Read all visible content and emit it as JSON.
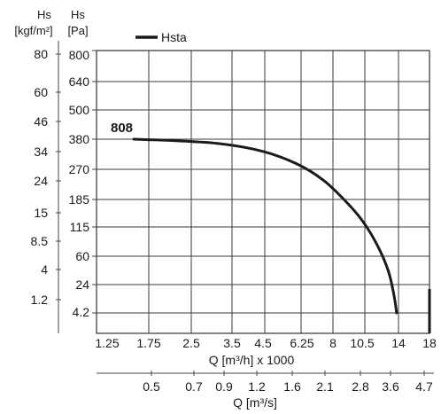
{
  "chart_data": {
    "type": "line",
    "title": "",
    "left_axes": [
      {
        "header": [
          "Hs",
          "[kgf/m²]"
        ],
        "ticks": [
          "80",
          "60",
          "46",
          "34",
          "24",
          "15",
          "8.5",
          "4",
          "1.2"
        ]
      },
      {
        "header": [
          "Hs",
          "[Pa]"
        ],
        "ticks": [
          "800",
          "640",
          "500",
          "380",
          "270",
          "185",
          "115",
          "60",
          "24",
          "4.2"
        ]
      }
    ],
    "x_axis_primary": {
      "label": "Q [m³/h] x 1000",
      "ticks": [
        "1.25",
        "1.75",
        "2.5",
        "3.5",
        "4.5",
        "6.25",
        "8",
        "10.5",
        "14",
        "18"
      ]
    },
    "x_axis_secondary": {
      "label": "Q [m³/s]",
      "ticks": [
        "0.5",
        "0.7",
        "0.9",
        "1.2",
        "1.6",
        "2.1",
        "2.8",
        "3.6",
        "4.7"
      ]
    },
    "legend": {
      "entries": [
        "Hsta"
      ],
      "placement": "top-left"
    },
    "grid": true,
    "series": [
      {
        "name": "Hsta",
        "label": "808",
        "color": "#1a1a1a",
        "points": [
          {
            "q_m3h_x1000": 1.55,
            "hs_pa": 380
          },
          {
            "q_m3h_x1000": 2.2,
            "hs_pa": 374
          },
          {
            "q_m3h_x1000": 3.2,
            "hs_pa": 362
          },
          {
            "q_m3h_x1000": 4.5,
            "hs_pa": 333
          },
          {
            "q_m3h_x1000": 6.0,
            "hs_pa": 288
          },
          {
            "q_m3h_x1000": 7.4,
            "hs_pa": 238
          },
          {
            "q_m3h_x1000": 9.0,
            "hs_pa": 180
          },
          {
            "q_m3h_x1000": 10.5,
            "hs_pa": 130
          },
          {
            "q_m3h_x1000": 11.8,
            "hs_pa": 80
          },
          {
            "q_m3h_x1000": 12.9,
            "hs_pa": 40
          },
          {
            "q_m3h_x1000": 13.5,
            "hs_pa": 15
          },
          {
            "q_m3h_x1000": 13.8,
            "hs_pa": 4.2
          }
        ]
      }
    ]
  }
}
